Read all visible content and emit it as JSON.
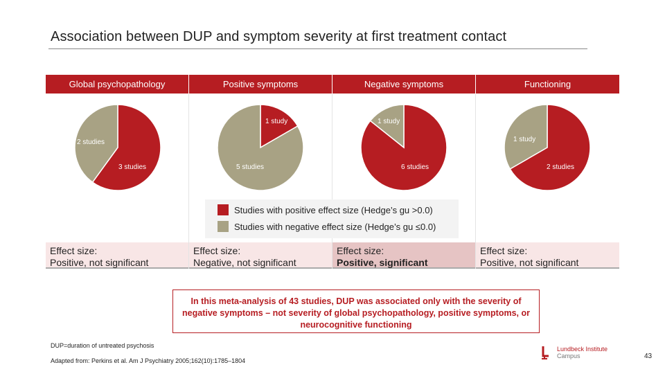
{
  "slide": {
    "title": "Association between DUP and symptom severity at first treatment contact",
    "footnote_abbrev": "DUP=duration of untreated psychosis",
    "footnote_source": "Adapted from: Perkins et al. Am J Psychiatry 2005;162(10):1785–1804",
    "page_number": "43",
    "logo": {
      "line1": "Lundbeck Institute",
      "line2": "Campus"
    },
    "summary": "In this meta-analysis of 43 studies, DUP was associated only with the severity of negative symptoms – not severity of global psychopathology, positive symptoms, or neurocognitive functioning"
  },
  "legend": {
    "positive": "Studies with positive effect size (Hedge’s gu >0.0)",
    "negative": "Studies with negative effect size (Hedge’s gu ≤0.0)"
  },
  "colors": {
    "positive": "#b61d22",
    "negative": "#a8a284",
    "header": "#b61d22"
  },
  "chart_data": [
    {
      "type": "pie",
      "category": "Global psychopathology",
      "slices": [
        {
          "name": "positive",
          "value": 3,
          "label": "3 studies"
        },
        {
          "name": "negative",
          "value": 2,
          "label": "2 studies"
        }
      ],
      "effect_size": {
        "prefix": "Effect size:",
        "value": "Positive, not significant"
      }
    },
    {
      "type": "pie",
      "category": "Positive symptoms",
      "slices": [
        {
          "name": "positive",
          "value": 1,
          "label": "1 study"
        },
        {
          "name": "negative",
          "value": 5,
          "label": "5 studies"
        }
      ],
      "effect_size": {
        "prefix": "Effect size:",
        "value": "Negative, not significant"
      }
    },
    {
      "type": "pie",
      "category": "Negative symptoms",
      "slices": [
        {
          "name": "positive",
          "value": 6,
          "label": "6 studies"
        },
        {
          "name": "negative",
          "value": 1,
          "label": "1 study"
        }
      ],
      "effect_size": {
        "prefix": "Effect size:",
        "value": "Positive, significant"
      }
    },
    {
      "type": "pie",
      "category": "Functioning",
      "slices": [
        {
          "name": "positive",
          "value": 2,
          "label": "2 studies"
        },
        {
          "name": "negative",
          "value": 1,
          "label": "1 study"
        }
      ],
      "effect_size": {
        "prefix": "Effect size:",
        "value": "Positive, not significant"
      }
    }
  ]
}
